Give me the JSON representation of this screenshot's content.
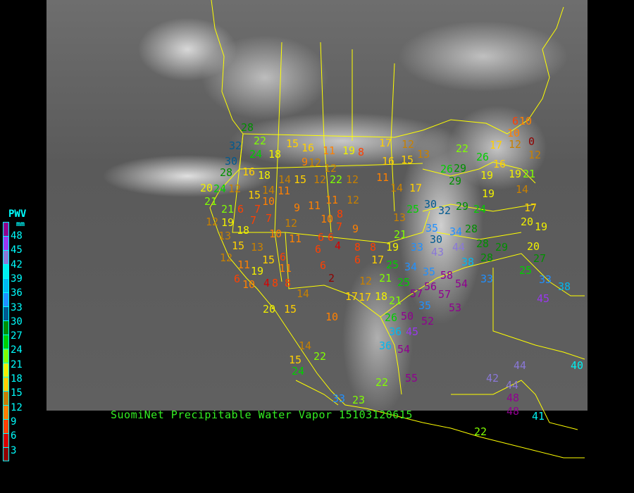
{
  "title": "SuomiNet Precipitable Water Vapor 15103120615",
  "legend": {
    "title": "PWV",
    "unit": "mm",
    "labels": [
      "48",
      "45",
      "42",
      "39",
      "36",
      "33",
      "30",
      "27",
      "24",
      "21",
      "18",
      "15",
      "12",
      "9",
      "6",
      "3"
    ],
    "colors": [
      "#900090",
      "#9a38f0",
      "#8a78d8",
      "#00f0f0",
      "#00b8f0",
      "#2090ff",
      "#005a90",
      "#009000",
      "#00d000",
      "#80ff00",
      "#f0f000",
      "#ffd000",
      "#c88000",
      "#ff8000",
      "#ff4000",
      "#d80000",
      "#900000"
    ]
  },
  "map": {
    "background": "grayscale infrared satellite image",
    "border_color": "#ffff00",
    "station_values": [
      28,
      22,
      32,
      30,
      28,
      24,
      16,
      18,
      18,
      24,
      12,
      15,
      14,
      14,
      15,
      12,
      20,
      21,
      6,
      10,
      11,
      21,
      19,
      15,
      16,
      11,
      19,
      8,
      17,
      12,
      16,
      15,
      13,
      12,
      12,
      9,
      22,
      12,
      11,
      12,
      10,
      8,
      11,
      14,
      17,
      9,
      7,
      7,
      18,
      12,
      15,
      7,
      10,
      12,
      11,
      7,
      6,
      6,
      9,
      11,
      6,
      4,
      13,
      12,
      13,
      11,
      15,
      6,
      11,
      10,
      19,
      4,
      6,
      8,
      8,
      6,
      2,
      8,
      8,
      17,
      6,
      12,
      19,
      13,
      21,
      33,
      17,
      18,
      17,
      21,
      25,
      21,
      25,
      20,
      15,
      14,
      10,
      25,
      30,
      32,
      35,
      30,
      34,
      29,
      24,
      28,
      26,
      29,
      29,
      22,
      26,
      16,
      19,
      19,
      19,
      14,
      17,
      19,
      20,
      20,
      28,
      28,
      29,
      44,
      43,
      35,
      38,
      33,
      56,
      58,
      57,
      54,
      35,
      34,
      50,
      57,
      45,
      53,
      26,
      52,
      36,
      54,
      36,
      14,
      22,
      15,
      24,
      22,
      33,
      23,
      55,
      42,
      44,
      44,
      48,
      48,
      41,
      22,
      40,
      45,
      38,
      33,
      25,
      27,
      10,
      12,
      10,
      6,
      0,
      12,
      21,
      17
    ]
  }
}
